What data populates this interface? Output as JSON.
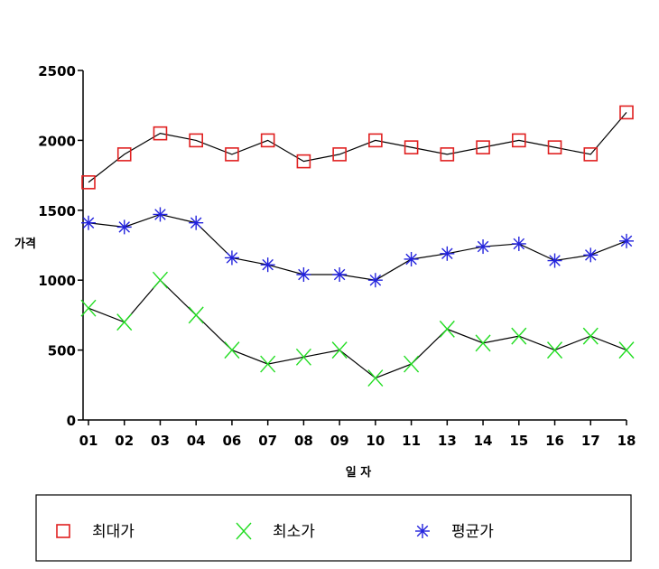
{
  "chart_data": {
    "type": "line",
    "categories": [
      "01",
      "02",
      "03",
      "04",
      "06",
      "07",
      "08",
      "09",
      "10",
      "11",
      "13",
      "14",
      "15",
      "16",
      "17",
      "18"
    ],
    "ylabel": "가격",
    "xlabel": "일 자",
    "ylim": [
      0,
      2500
    ],
    "yticks": [
      0,
      500,
      1000,
      1500,
      2000,
      2500
    ],
    "grid": false,
    "legend_position": "bottom",
    "series": [
      {
        "name": "최대가",
        "marker": "square",
        "color": "#e02020",
        "values": [
          1700,
          1900,
          2050,
          2000,
          1900,
          2000,
          1850,
          1900,
          2000,
          1950,
          1900,
          1950,
          2000,
          1950,
          1900,
          2200
        ]
      },
      {
        "name": "최소가",
        "marker": "x",
        "color": "#22dd22",
        "values": [
          800,
          700,
          1000,
          750,
          500,
          400,
          450,
          500,
          300,
          400,
          650,
          550,
          600,
          500,
          600,
          500
        ]
      },
      {
        "name": "평균가",
        "marker": "asterisk",
        "color": "#2222dd",
        "values": [
          1410,
          1380,
          1470,
          1410,
          1160,
          1110,
          1040,
          1040,
          1000,
          1150,
          1190,
          1240,
          1260,
          1140,
          1180,
          1280
        ]
      }
    ]
  }
}
